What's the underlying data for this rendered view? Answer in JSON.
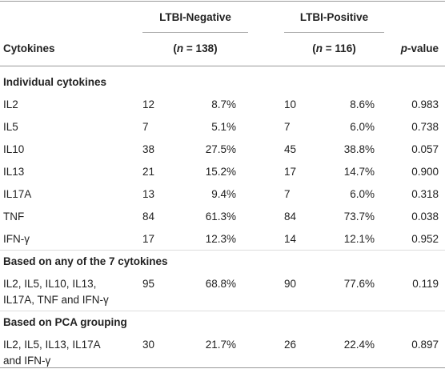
{
  "table": {
    "header": {
      "group_labels": [
        "LTBI-Negative",
        "LTBI-Positive"
      ],
      "first_column": "Cytokines",
      "n_labels": [
        [
          "(",
          "n",
          " = 138)"
        ],
        [
          "(",
          "n",
          " = 116)"
        ]
      ],
      "p_label": [
        "p",
        "-value"
      ]
    },
    "sections": [
      {
        "title": "Individual cytokines",
        "rows": [
          [
            "IL2",
            "12",
            "8.7%",
            "10",
            "8.6%",
            "0.983"
          ],
          [
            "IL5",
            "7",
            "5.1%",
            "7",
            "6.0%",
            "0.738"
          ],
          [
            "IL10",
            "38",
            "27.5%",
            "45",
            "38.8%",
            "0.057"
          ],
          [
            "IL13",
            "21",
            "15.2%",
            "17",
            "14.7%",
            "0.900"
          ],
          [
            "IL17A",
            "13",
            "9.4%",
            "7",
            "6.0%",
            "0.318"
          ],
          [
            "TNF",
            "84",
            "61.3%",
            "84",
            "73.7%",
            "0.038"
          ],
          [
            "IFN-γ",
            "17",
            "12.3%",
            "14",
            "12.1%",
            "0.952"
          ]
        ]
      },
      {
        "title": "Based on any of the 7 cytokines",
        "rows": [
          [
            [
              "IL2, IL5, IL10, IL13,",
              "IL17A, TNF and IFN-γ"
            ],
            "95",
            "68.8%",
            "90",
            "77.6%",
            "0.119"
          ]
        ]
      },
      {
        "title": "Based on PCA grouping",
        "rows": [
          [
            [
              "IL2, IL5, IL13, IL17A",
              "and IFN-γ"
            ],
            "30",
            "21.7%",
            "26",
            "22.4%",
            "0.897"
          ]
        ]
      }
    ]
  }
}
